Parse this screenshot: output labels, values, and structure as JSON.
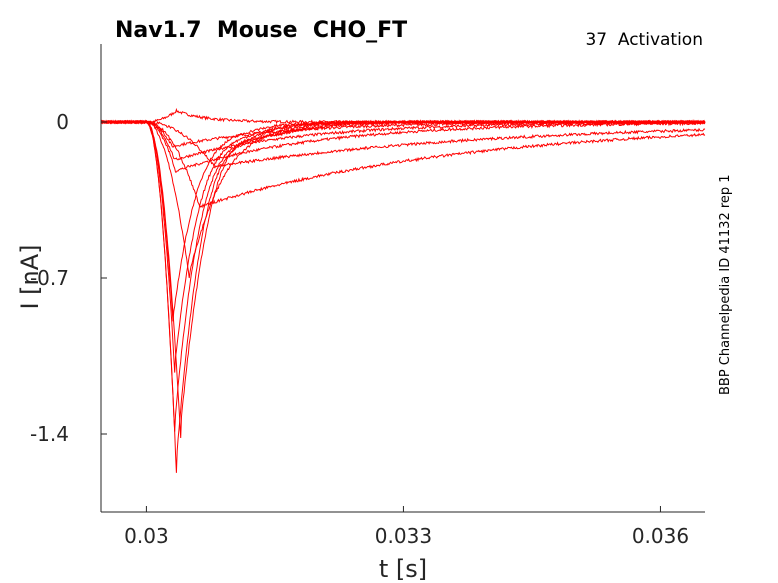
{
  "chart_data": {
    "type": "line",
    "title": "Nav1.7  Mouse  CHO_FT",
    "subtitle": "37  Activation",
    "side_label": "BBP Channelpedia ID 41132 rep 1",
    "xlabel": "t [s]",
    "ylabel": "I [nA]",
    "xlim": [
      0.02947,
      0.03652
    ],
    "ylim": [
      -1.75,
      0.35
    ],
    "x_ticks": [
      "0.03",
      "0.033",
      "0.036"
    ],
    "y_ticks": [
      "0",
      "-0.7",
      "-1.4"
    ],
    "grid": false,
    "line_color": "#ff0000",
    "traces": [
      {
        "peak_time": 0.03035,
        "peak": 0.05,
        "hump": 0.0
      },
      {
        "peak_time": 0.0303,
        "peak": -0.11,
        "hump": 0.0
      },
      {
        "peak_time": 0.03033,
        "peak": -0.17,
        "hump": 0.03
      },
      {
        "peak_time": 0.03034,
        "peak": -0.22,
        "hump": 0.05
      },
      {
        "peak_time": 0.03031,
        "peak": -0.9,
        "hump": 0.05
      },
      {
        "peak_time": 0.03033,
        "peak": -1.12,
        "hump": 0.08
      },
      {
        "peak_time": 0.03033,
        "peak": -1.39,
        "hump": 0.1
      },
      {
        "peak_time": 0.03035,
        "peak": -1.57,
        "hump": 0.15
      },
      {
        "peak_time": 0.0304,
        "peak": -1.42,
        "hump": 0.18
      },
      {
        "peak_time": 0.0305,
        "peak": -0.7,
        "hump": 0.05
      },
      {
        "peak_time": 0.03062,
        "peak": -0.38,
        "hump": 0.0
      },
      {
        "peak_time": 0.0308,
        "peak": -0.2,
        "hump": 0.0
      }
    ]
  }
}
